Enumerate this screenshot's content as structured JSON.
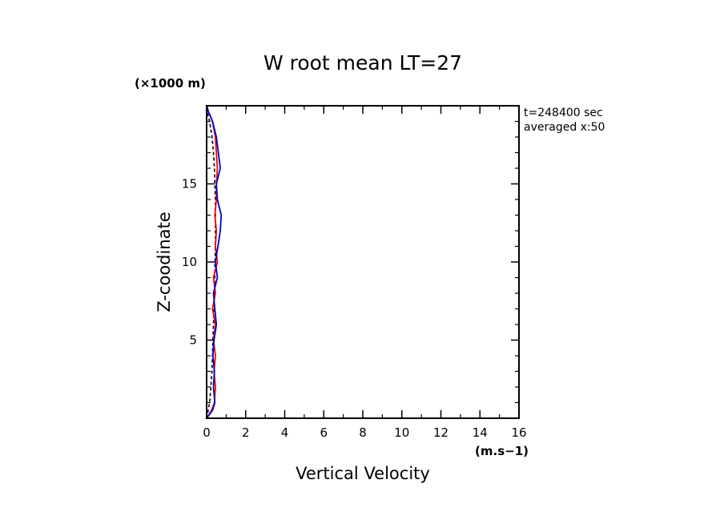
{
  "chart_data": {
    "type": "line",
    "title": "W root mean LT=27",
    "xlabel": "Vertical Velocity",
    "ylabel": "Z-coodinate",
    "x_unit": "(m.s−1)",
    "y_unit": "(×1000 m)",
    "xlim": [
      0,
      16
    ],
    "ylim": [
      0,
      20
    ],
    "x_ticks": [
      0,
      2,
      4,
      6,
      8,
      10,
      12,
      14,
      16
    ],
    "x_tick_labels": [
      "0",
      "2",
      "4",
      "6",
      "8",
      "10",
      "12",
      "14",
      "16"
    ],
    "y_ticks": [
      5,
      10,
      15
    ],
    "y_tick_labels": [
      "5",
      "10",
      "15"
    ],
    "annotations": [
      "t=248400 sec",
      "averaged  x:50"
    ],
    "series": [
      {
        "name": "black-dashed",
        "color": "#000000",
        "style": "dashed",
        "points": [
          [
            0.0,
            0
          ],
          [
            0.08,
            0.5
          ],
          [
            0.15,
            1
          ],
          [
            0.22,
            2
          ],
          [
            0.27,
            3
          ],
          [
            0.3,
            4
          ],
          [
            0.32,
            5
          ],
          [
            0.35,
            6
          ],
          [
            0.38,
            7
          ],
          [
            0.4,
            8
          ],
          [
            0.42,
            9
          ],
          [
            0.43,
            10
          ],
          [
            0.45,
            11
          ],
          [
            0.45,
            12
          ],
          [
            0.45,
            13
          ],
          [
            0.45,
            14
          ],
          [
            0.42,
            15
          ],
          [
            0.4,
            16
          ],
          [
            0.35,
            17
          ],
          [
            0.28,
            18
          ],
          [
            0.15,
            19
          ],
          [
            0.05,
            19.5
          ],
          [
            0.0,
            20
          ]
        ]
      },
      {
        "name": "red",
        "color": "#ff0000",
        "style": "solid",
        "points": [
          [
            0.0,
            0
          ],
          [
            0.25,
            0.5
          ],
          [
            0.4,
            1
          ],
          [
            0.45,
            2
          ],
          [
            0.38,
            3
          ],
          [
            0.45,
            4
          ],
          [
            0.35,
            5
          ],
          [
            0.45,
            6
          ],
          [
            0.3,
            7
          ],
          [
            0.45,
            8
          ],
          [
            0.35,
            9
          ],
          [
            0.55,
            10
          ],
          [
            0.45,
            11
          ],
          [
            0.5,
            12
          ],
          [
            0.42,
            13
          ],
          [
            0.5,
            14
          ],
          [
            0.5,
            15
          ],
          [
            0.55,
            16
          ],
          [
            0.5,
            17
          ],
          [
            0.45,
            18
          ],
          [
            0.3,
            19
          ],
          [
            0.1,
            19.6
          ],
          [
            0.0,
            20
          ]
        ]
      },
      {
        "name": "blue",
        "color": "#0000cc",
        "style": "solid",
        "points": [
          [
            0.0,
            0
          ],
          [
            0.3,
            0.5
          ],
          [
            0.42,
            1
          ],
          [
            0.35,
            2
          ],
          [
            0.4,
            3
          ],
          [
            0.32,
            4
          ],
          [
            0.38,
            5
          ],
          [
            0.5,
            6
          ],
          [
            0.42,
            7
          ],
          [
            0.35,
            8
          ],
          [
            0.55,
            9
          ],
          [
            0.45,
            10
          ],
          [
            0.58,
            11
          ],
          [
            0.7,
            12
          ],
          [
            0.75,
            13
          ],
          [
            0.55,
            14
          ],
          [
            0.5,
            15
          ],
          [
            0.7,
            16
          ],
          [
            0.6,
            17
          ],
          [
            0.5,
            18
          ],
          [
            0.3,
            19
          ],
          [
            0.1,
            19.6
          ],
          [
            0.0,
            20
          ]
        ]
      }
    ]
  }
}
